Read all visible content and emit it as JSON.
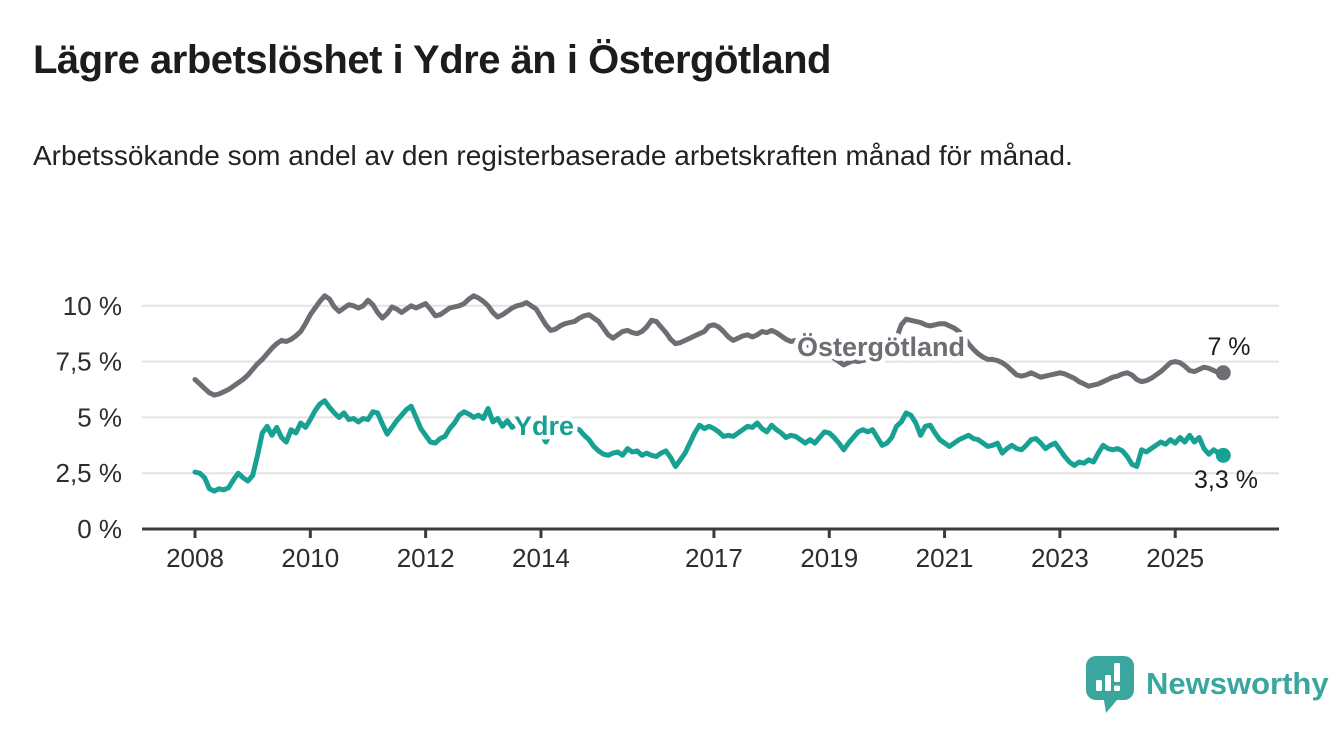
{
  "header": {
    "title": "Lägre arbetslöshet i Ydre än i Östergötland",
    "subtitle": "Arbetssökande som andel av den registerbaserade arbetskraften månad för månad."
  },
  "chart_data": {
    "type": "line",
    "unit": "%",
    "frequency": "monthly",
    "start": {
      "year": 2008,
      "month": 1
    },
    "end": {
      "year": 2025,
      "month": 11
    },
    "grid": true,
    "ylim": [
      0,
      11.2
    ],
    "x_tick_labels": [
      "2008",
      "2010",
      "2012",
      "2014",
      "2017",
      "2019",
      "2021",
      "2023",
      "2025"
    ],
    "x_tick_years": [
      2008,
      2010,
      2012,
      2014,
      2017,
      2019,
      2021,
      2023,
      2025
    ],
    "y_ticks": [
      {
        "value": 0,
        "label": "0 %"
      },
      {
        "value": 2.5,
        "label": "2,5 %"
      },
      {
        "value": 5,
        "label": "5 %"
      },
      {
        "value": 7.5,
        "label": "7,5 %"
      },
      {
        "value": 10,
        "label": "10 %"
      }
    ],
    "series": [
      {
        "name": "Östergötland",
        "color": "#6d6d73",
        "end_label": "7 %",
        "last_value": 7.0,
        "values": [
          6.7,
          6.5,
          6.3,
          6.1,
          6.0,
          6.05,
          6.15,
          6.25,
          6.4,
          6.55,
          6.7,
          6.9,
          7.15,
          7.4,
          7.6,
          7.85,
          8.1,
          8.3,
          8.45,
          8.4,
          8.5,
          8.65,
          8.85,
          9.2,
          9.6,
          9.9,
          10.2,
          10.45,
          10.3,
          9.95,
          9.75,
          9.9,
          10.05,
          10.0,
          9.9,
          10.0,
          10.25,
          10.05,
          9.7,
          9.45,
          9.65,
          9.95,
          9.85,
          9.7,
          9.85,
          10.0,
          9.9,
          10.0,
          10.1,
          9.85,
          9.55,
          9.6,
          9.75,
          9.9,
          9.95,
          10.0,
          10.1,
          10.3,
          10.45,
          10.35,
          10.2,
          10.0,
          9.7,
          9.5,
          9.6,
          9.75,
          9.9,
          10.0,
          10.05,
          10.15,
          10.0,
          9.85,
          9.5,
          9.15,
          8.9,
          8.95,
          9.1,
          9.2,
          9.25,
          9.3,
          9.45,
          9.55,
          9.6,
          9.45,
          9.3,
          9.0,
          8.7,
          8.55,
          8.7,
          8.85,
          8.9,
          8.8,
          8.75,
          8.85,
          9.05,
          9.35,
          9.3,
          9.05,
          8.8,
          8.5,
          8.3,
          8.35,
          8.45,
          8.55,
          8.65,
          8.75,
          8.85,
          9.1,
          9.15,
          9.05,
          8.85,
          8.6,
          8.45,
          8.55,
          8.65,
          8.7,
          8.6,
          8.7,
          8.85,
          8.8,
          8.9,
          8.8,
          8.65,
          8.5,
          8.4,
          8.45,
          8.4,
          8.3,
          8.2,
          8.1,
          8.0,
          7.9,
          7.8,
          7.65,
          7.5,
          7.35,
          7.45,
          7.55,
          7.5,
          7.55,
          7.6,
          7.65,
          7.75,
          7.85,
          8.0,
          8.1,
          8.55,
          9.15,
          9.4,
          9.35,
          9.3,
          9.25,
          9.15,
          9.1,
          9.15,
          9.2,
          9.2,
          9.1,
          9.0,
          8.85,
          8.6,
          8.3,
          8.05,
          7.85,
          7.7,
          7.6,
          7.6,
          7.55,
          7.45,
          7.3,
          7.1,
          6.9,
          6.85,
          6.9,
          7.0,
          6.9,
          6.8,
          6.85,
          6.9,
          6.95,
          7.0,
          6.95,
          6.85,
          6.75,
          6.6,
          6.5,
          6.4,
          6.45,
          6.5,
          6.6,
          6.7,
          6.8,
          6.85,
          6.95,
          7.0,
          6.9,
          6.7,
          6.6,
          6.65,
          6.75,
          6.9,
          7.05,
          7.25,
          7.45,
          7.5,
          7.45,
          7.3,
          7.1,
          7.05,
          7.15,
          7.25,
          7.2,
          7.1,
          7.0,
          7.0
        ]
      },
      {
        "name": "Ydre",
        "color": "#18a193",
        "end_label": "3,3 %",
        "last_value": 3.3,
        "values": [
          2.55,
          2.5,
          2.3,
          1.8,
          1.7,
          1.8,
          1.75,
          1.85,
          2.2,
          2.5,
          2.3,
          2.15,
          2.4,
          3.3,
          4.3,
          4.6,
          4.2,
          4.55,
          4.1,
          3.9,
          4.45,
          4.3,
          4.75,
          4.55,
          4.9,
          5.3,
          5.6,
          5.75,
          5.45,
          5.2,
          5.0,
          5.2,
          4.9,
          4.95,
          4.8,
          4.95,
          4.9,
          5.25,
          5.2,
          4.7,
          4.25,
          4.55,
          4.85,
          5.1,
          5.35,
          5.5,
          5.0,
          4.5,
          4.2,
          3.9,
          3.85,
          4.05,
          4.15,
          4.5,
          4.75,
          5.1,
          5.25,
          5.15,
          5.0,
          5.1,
          4.95,
          5.4,
          4.8,
          4.95,
          4.6,
          4.85,
          4.55,
          4.7,
          4.5,
          4.65,
          4.4,
          4.5,
          4.3,
          3.9,
          4.3,
          4.2,
          4.35,
          4.45,
          4.6,
          4.5,
          4.45,
          4.2,
          4.0,
          3.7,
          3.5,
          3.35,
          3.3,
          3.4,
          3.45,
          3.3,
          3.6,
          3.45,
          3.5,
          3.3,
          3.4,
          3.3,
          3.25,
          3.4,
          3.5,
          3.2,
          2.8,
          3.1,
          3.4,
          3.85,
          4.3,
          4.65,
          4.5,
          4.6,
          4.5,
          4.35,
          4.15,
          4.2,
          4.15,
          4.3,
          4.45,
          4.6,
          4.55,
          4.75,
          4.5,
          4.35,
          4.65,
          4.45,
          4.3,
          4.1,
          4.2,
          4.15,
          4.0,
          3.85,
          4.0,
          3.85,
          4.1,
          4.35,
          4.3,
          4.1,
          3.85,
          3.55,
          3.85,
          4.1,
          4.35,
          4.45,
          4.35,
          4.45,
          4.1,
          3.75,
          3.85,
          4.1,
          4.6,
          4.8,
          5.2,
          5.1,
          4.75,
          4.2,
          4.6,
          4.65,
          4.3,
          4.0,
          3.85,
          3.7,
          3.85,
          4.0,
          4.1,
          4.2,
          4.05,
          4.0,
          3.85,
          3.7,
          3.75,
          3.85,
          3.4,
          3.6,
          3.75,
          3.6,
          3.55,
          3.75,
          4.0,
          4.05,
          3.85,
          3.6,
          3.75,
          3.85,
          3.55,
          3.25,
          3.0,
          2.85,
          3.0,
          2.95,
          3.1,
          3.0,
          3.4,
          3.75,
          3.6,
          3.55,
          3.6,
          3.5,
          3.25,
          2.9,
          2.8,
          3.55,
          3.45,
          3.6,
          3.75,
          3.9,
          3.8,
          4.0,
          3.85,
          4.1,
          3.9,
          4.2,
          3.9,
          4.1,
          3.6,
          3.35,
          3.55,
          3.4,
          3.3
        ]
      }
    ]
  },
  "logo": {
    "text": "Newsworthy"
  },
  "colors": {
    "accent_teal": "#18a193",
    "series_gray": "#6d6d73",
    "logo_teal": "#3aa69e",
    "axis": "#3c3c3c",
    "grid": "#e3e3e3",
    "text_dark": "#1c1c1c",
    "tick_text": "#2d2d2d"
  }
}
